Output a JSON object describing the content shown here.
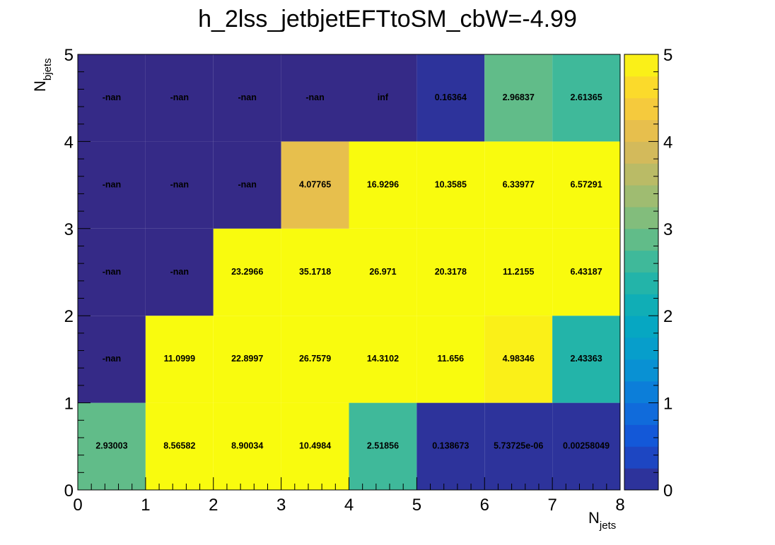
{
  "chart_data": {
    "type": "heatmap",
    "title": "h_2lss_jetbjetEFTtoSM_cbW=-4.99",
    "xlabel": {
      "base": "N",
      "sub": "jets"
    },
    "ylabel": {
      "base": "N",
      "sub": "bjets"
    },
    "x_edges": [
      0,
      1,
      2,
      3,
      4,
      5,
      6,
      7,
      8
    ],
    "y_edges": [
      0,
      1,
      2,
      3,
      4,
      5
    ],
    "xlim": [
      0,
      8
    ],
    "ylim": [
      0,
      5
    ],
    "x_ticks": [
      "0",
      "1",
      "2",
      "3",
      "4",
      "5",
      "6",
      "7",
      "8"
    ],
    "y_ticks": [
      "0",
      "1",
      "2",
      "3",
      "4",
      "5"
    ],
    "zlim": [
      0,
      5
    ],
    "z_ticks": [
      "0",
      "1",
      "2",
      "3",
      "4",
      "5"
    ],
    "colormap": "parula",
    "cells": [
      [
        {
          "label": "2.93003",
          "value": 2.93003
        },
        {
          "label": "8.56582",
          "value": 8.56582
        },
        {
          "label": "8.90034",
          "value": 8.90034
        },
        {
          "label": "10.4984",
          "value": 10.4984
        },
        {
          "label": "2.51856",
          "value": 2.51856
        },
        {
          "label": "0.138673",
          "value": 0.138673
        },
        {
          "label": "5.73725e-06",
          "value": 5.73725e-06
        },
        {
          "label": "0.00258049",
          "value": 0.00258049
        }
      ],
      [
        {
          "label": "-nan",
          "value": null
        },
        {
          "label": "11.0999",
          "value": 11.0999
        },
        {
          "label": "22.8997",
          "value": 22.8997
        },
        {
          "label": "26.7579",
          "value": 26.7579
        },
        {
          "label": "14.3102",
          "value": 14.3102
        },
        {
          "label": "11.656",
          "value": 11.656
        },
        {
          "label": "4.98346",
          "value": 4.98346
        },
        {
          "label": "2.43363",
          "value": 2.43363
        }
      ],
      [
        {
          "label": "-nan",
          "value": null
        },
        {
          "label": "-nan",
          "value": null
        },
        {
          "label": "23.2966",
          "value": 23.2966
        },
        {
          "label": "35.1718",
          "value": 35.1718
        },
        {
          "label": "26.971",
          "value": 26.971
        },
        {
          "label": "20.3178",
          "value": 20.3178
        },
        {
          "label": "11.2155",
          "value": 11.2155
        },
        {
          "label": "6.43187",
          "value": 6.43187
        }
      ],
      [
        {
          "label": "-nan",
          "value": null
        },
        {
          "label": "-nan",
          "value": null
        },
        {
          "label": "-nan",
          "value": null
        },
        {
          "label": "4.07765",
          "value": 4.07765
        },
        {
          "label": "16.9296",
          "value": 16.9296
        },
        {
          "label": "10.3585",
          "value": 10.3585
        },
        {
          "label": "6.33977",
          "value": 6.33977
        },
        {
          "label": "6.57291",
          "value": 6.57291
        }
      ],
      [
        {
          "label": "-nan",
          "value": null
        },
        {
          "label": "-nan",
          "value": null
        },
        {
          "label": "-nan",
          "value": null
        },
        {
          "label": "-nan",
          "value": null
        },
        {
          "label": "inf",
          "value": null
        },
        {
          "label": "0.16364",
          "value": 0.16364
        },
        {
          "label": "2.96837",
          "value": 2.96837
        },
        {
          "label": "2.61365",
          "value": 2.61365
        }
      ]
    ]
  }
}
